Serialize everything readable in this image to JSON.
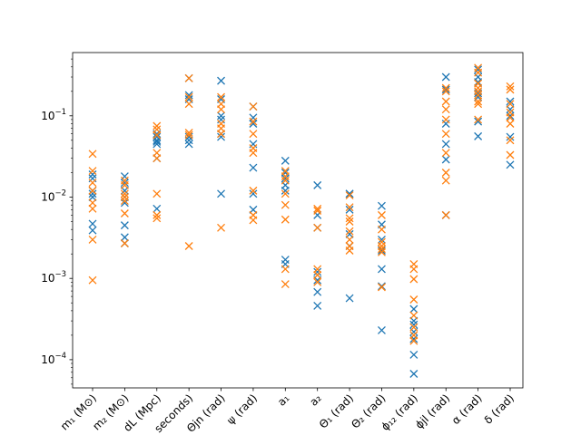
{
  "chart_data": {
    "type": "scatter",
    "marker": "x",
    "yscale": "log",
    "ylim": [
      4.5e-05,
      0.6
    ],
    "yticks": [
      {
        "value": 0.0001,
        "base": "10",
        "exp": "−4"
      },
      {
        "value": 0.001,
        "base": "10",
        "exp": "−3"
      },
      {
        "value": 0.01,
        "base": "10",
        "exp": "−2"
      },
      {
        "value": 0.1,
        "base": "10",
        "exp": "−1"
      }
    ],
    "categories": [
      "m₁ (M⊙)",
      "m₂ (M⊙)",
      "dL (Mpc)",
      "seconds)",
      "Θjn (rad)",
      "ψ (rad)",
      "a₁",
      "a₂",
      "Θ₁ (rad)",
      "Θ₂ (rad)",
      "ϕ₁₂ (rad)",
      "ϕjl (rad)",
      "α (rad)",
      "δ (rad)"
    ],
    "grid": false,
    "legend": "none",
    "series": [
      {
        "color": "#1f77b4",
        "values": [
          [
            0.019,
            0.017,
            0.012,
            0.011,
            0.01,
            0.0047,
            0.0039
          ],
          [
            0.018,
            0.015,
            0.012,
            0.01,
            0.0085,
            0.0045,
            0.0032,
            0.0027
          ],
          [
            0.06,
            0.055,
            0.05,
            0.048,
            0.045,
            0.03,
            0.0072
          ],
          [
            0.29,
            0.18,
            0.16,
            0.055,
            0.05,
            0.045
          ],
          [
            0.27,
            0.16,
            0.1,
            0.09,
            0.06,
            0.055,
            0.011
          ],
          [
            0.13,
            0.095,
            0.08,
            0.045,
            0.023,
            0.011,
            0.007
          ],
          [
            0.028,
            0.02,
            0.017,
            0.014,
            0.012,
            0.0017,
            0.0015
          ],
          [
            0.014,
            0.006,
            0.0042,
            0.0012,
            0.00095,
            0.00068,
            0.00046
          ],
          [
            0.011,
            0.011,
            0.007,
            0.0035,
            0.0025,
            0.00057
          ],
          [
            0.0078,
            0.0046,
            0.003,
            0.0022,
            0.0013,
            0.0008,
            0.00023
          ],
          [
            0.00042,
            0.0003,
            0.00027,
            0.00022,
            0.00018,
            0.000115,
            6.7e-05
          ],
          [
            0.3,
            0.21,
            0.08,
            0.045,
            0.029,
            0.006
          ],
          [
            0.37,
            0.3,
            0.26,
            0.19,
            0.17,
            0.085,
            0.056
          ],
          [
            0.15,
            0.12,
            0.1,
            0.055,
            0.025
          ]
        ]
      },
      {
        "color": "#ff7f0e",
        "values": [
          [
            0.034,
            0.021,
            0.015,
            0.012,
            0.0085,
            0.0072,
            0.003,
            0.00095
          ],
          [
            0.016,
            0.014,
            0.011,
            0.01,
            0.009,
            0.0063,
            0.0027
          ],
          [
            0.075,
            0.068,
            0.058,
            0.035,
            0.03,
            0.011,
            0.006,
            0.0055
          ],
          [
            0.29,
            0.17,
            0.14,
            0.062,
            0.058,
            0.0025
          ],
          [
            0.17,
            0.14,
            0.12,
            0.08,
            0.07,
            0.06,
            0.0042
          ],
          [
            0.13,
            0.085,
            0.06,
            0.04,
            0.035,
            0.012,
            0.006,
            0.0052
          ],
          [
            0.021,
            0.018,
            0.016,
            0.011,
            0.008,
            0.0053,
            0.0013,
            0.00085
          ],
          [
            0.0072,
            0.0068,
            0.0042,
            0.0013,
            0.0011,
            0.0009
          ],
          [
            0.0105,
            0.0075,
            0.0055,
            0.005,
            0.0038,
            0.003,
            0.0025,
            0.0022
          ],
          [
            0.006,
            0.004,
            0.0028,
            0.0025,
            0.0023,
            0.0021,
            0.00078
          ],
          [
            0.0015,
            0.0013,
            0.00098,
            0.00055,
            0.00035,
            0.00025,
            0.0002,
            0.00017
          ],
          [
            0.22,
            0.2,
            0.15,
            0.12,
            0.09,
            0.06,
            0.035,
            0.02,
            0.016,
            0.006
          ],
          [
            0.39,
            0.34,
            0.25,
            0.22,
            0.2,
            0.18,
            0.15,
            0.14,
            0.09
          ],
          [
            0.23,
            0.21,
            0.14,
            0.11,
            0.095,
            0.08,
            0.05,
            0.033
          ]
        ]
      }
    ]
  }
}
